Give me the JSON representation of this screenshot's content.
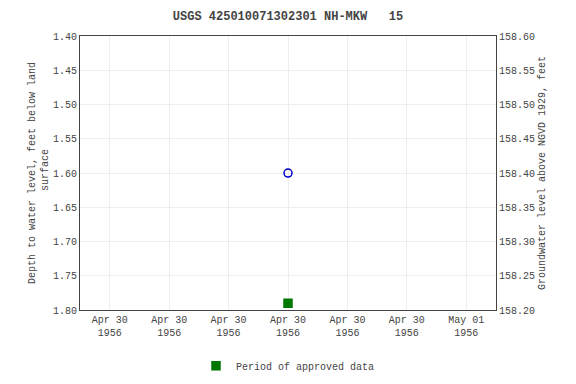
{
  "chart_data": {
    "type": "scatter",
    "title": "USGS 425010071302301 NH-MKW   15",
    "ylabel": "Depth to water level, feet below land\n surface",
    "y2label": "Groundwater level above NGVD 1929, feet",
    "categories": [
      "Apr 30\n1956",
      "Apr 30\n1956",
      "Apr 30\n1956",
      "Apr 30\n1956",
      "Apr 30\n1956",
      "Apr 30\n1956",
      "May 01\n1956"
    ],
    "series": [
      {
        "color": "#0000cc",
        "marker": "circle-open",
        "values": [
          null,
          null,
          null,
          1.6,
          null,
          null,
          null
        ]
      },
      {
        "name": "Period of approved data",
        "color": "#007700",
        "marker": "square",
        "values": [
          null,
          null,
          null,
          1.79,
          null,
          null,
          null
        ]
      }
    ],
    "ylim": [
      1.8,
      1.4
    ],
    "yticks": [
      {
        "value": 1.4,
        "label": "1.40"
      },
      1.45,
      {
        "value": 1.5,
        "label": "1.50"
      },
      1.55,
      {
        "value": 1.6,
        "label": "1.60"
      },
      1.65,
      {
        "value": 1.7,
        "label": "1.70"
      },
      1.75,
      {
        "value": 1.8,
        "label": "1.80"
      }
    ],
    "y2lim": [
      158.2,
      158.6
    ],
    "y2ticks": [
      {
        "value": 158.6,
        "label": "158.60"
      },
      158.55,
      {
        "value": 158.5,
        "label": "158.50"
      },
      158.45,
      {
        "value": 158.4,
        "label": "158.40"
      },
      158.35,
      {
        "value": 158.3,
        "label": "158.30"
      },
      158.25,
      {
        "value": 158.2,
        "label": "158.20"
      }
    ],
    "grid": true,
    "legend": "bottom"
  }
}
